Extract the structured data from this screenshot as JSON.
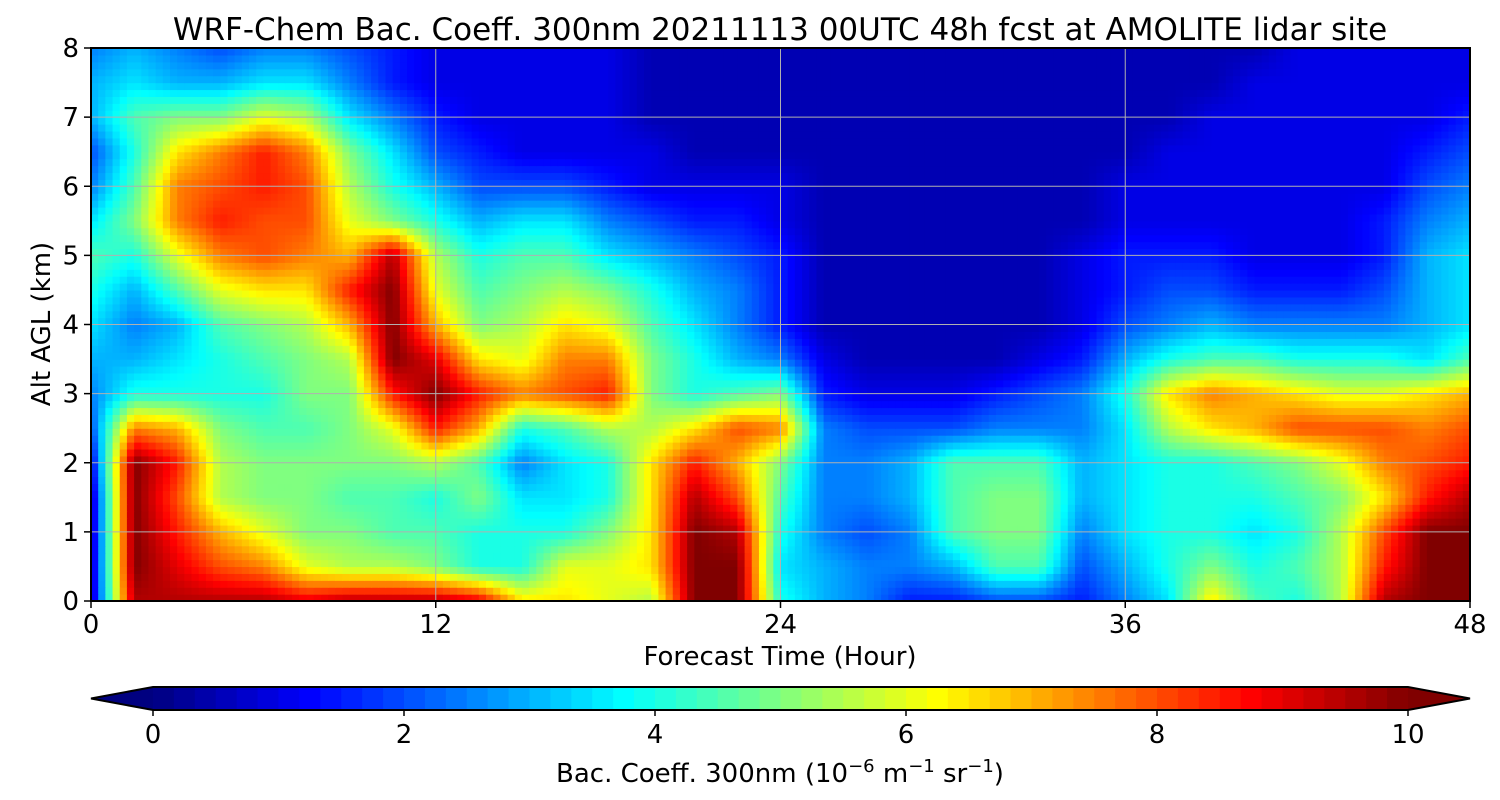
{
  "chart_data": {
    "type": "heatmap",
    "subtype": "filled-contour",
    "title": "WRF-Chem Bac. Coeff. 300nm  20211113 00UTC 48h fcst at AMOLITE lidar site",
    "xlabel": "Forecast Time (Hour)",
    "ylabel": "Alt AGL (km)",
    "xlim": [
      0,
      48
    ],
    "ylim": [
      0,
      8
    ],
    "x_ticks": [
      "0",
      "12",
      "24",
      "36",
      "48"
    ],
    "y_ticks": [
      "0",
      "1",
      "2",
      "3",
      "4",
      "5",
      "6",
      "7",
      "8"
    ],
    "grid": true,
    "colormap": "jet",
    "colorbar": {
      "label_prefix": "Bac. Coeff. 300nm  (10",
      "label_exp1": "−6",
      "label_mid": " m",
      "label_exp2": "−1",
      "label_mid2": " sr",
      "label_exp3": "−1",
      "label_suffix": ")",
      "range": [
        0,
        10
      ],
      "ticks": [
        "0",
        "2",
        "4",
        "6",
        "8",
        "10"
      ],
      "extend": "both",
      "placement": "bottom"
    },
    "x": [
      0,
      1.5,
      3,
      4.5,
      6,
      7.5,
      9,
      10.5,
      12,
      13.5,
      15,
      16.5,
      18,
      19.5,
      21,
      22.5,
      24,
      25.5,
      27,
      28.5,
      30,
      31.5,
      33,
      34.5,
      36,
      37.5,
      39,
      40.5,
      42,
      43.5,
      45,
      46.5,
      48
    ],
    "y": [
      0,
      0.5,
      1,
      1.5,
      2,
      2.5,
      3,
      3.5,
      4,
      4.5,
      5,
      5.5,
      6,
      6.5,
      7,
      7.5,
      8
    ],
    "z": [
      [
        0.5,
        9.5,
        9.5,
        9.5,
        9.5,
        9.0,
        9.5,
        9.5,
        9.5,
        9.0,
        6.5,
        6.5,
        6.0,
        5.5,
        10.0,
        10.0,
        4.0,
        3.0,
        2.5,
        1.5,
        1.5,
        2.0,
        2.0,
        1.5,
        2.5,
        3.5,
        6.5,
        4.5,
        4.0,
        5.5,
        9.5,
        10.0,
        10.0
      ],
      [
        0.5,
        10.0,
        9.0,
        8.0,
        7.5,
        6.0,
        5.5,
        5.5,
        5.0,
        4.0,
        4.0,
        6.0,
        6.0,
        6.5,
        10.0,
        10.0,
        3.5,
        3.0,
        2.5,
        2.5,
        3.0,
        4.5,
        4.5,
        2.0,
        3.0,
        4.0,
        5.0,
        4.0,
        4.5,
        5.5,
        8.5,
        10.0,
        10.0
      ],
      [
        0.5,
        10.0,
        8.5,
        7.0,
        6.0,
        5.0,
        5.0,
        4.5,
        4.5,
        4.0,
        4.0,
        4.0,
        5.0,
        6.5,
        10.0,
        9.5,
        4.0,
        2.5,
        2.0,
        2.5,
        4.5,
        5.0,
        5.0,
        2.5,
        3.5,
        4.0,
        4.0,
        3.5,
        4.0,
        5.5,
        8.0,
        10.0,
        10.0
      ],
      [
        0.5,
        10.0,
        8.0,
        5.5,
        5.0,
        5.0,
        4.5,
        4.5,
        4.0,
        5.0,
        3.5,
        3.5,
        4.0,
        6.5,
        9.5,
        8.0,
        4.5,
        2.5,
        2.5,
        3.0,
        4.5,
        5.0,
        5.0,
        3.0,
        3.5,
        4.0,
        4.0,
        4.0,
        4.5,
        5.0,
        6.5,
        8.5,
        9.5
      ],
      [
        1.0,
        10.0,
        8.5,
        5.5,
        5.0,
        5.0,
        5.0,
        5.0,
        5.5,
        4.5,
        2.5,
        3.5,
        4.0,
        6.5,
        8.5,
        7.0,
        5.0,
        2.5,
        2.5,
        3.0,
        4.5,
        4.5,
        4.5,
        3.0,
        3.5,
        4.0,
        4.0,
        4.5,
        5.0,
        6.0,
        7.5,
        8.0,
        8.5
      ],
      [
        2.0,
        7.5,
        7.0,
        5.0,
        4.5,
        4.5,
        5.0,
        6.0,
        8.5,
        7.0,
        4.0,
        4.5,
        5.5,
        5.5,
        6.5,
        8.0,
        7.5,
        2.5,
        2.0,
        2.0,
        2.0,
        2.5,
        2.5,
        2.5,
        3.5,
        5.5,
        6.5,
        7.0,
        8.0,
        8.0,
        8.0,
        7.5,
        8.0
      ],
      [
        2.5,
        4.0,
        4.0,
        4.0,
        4.0,
        5.0,
        5.0,
        8.5,
        10.0,
        8.5,
        7.5,
        8.0,
        8.5,
        5.0,
        4.0,
        4.5,
        5.0,
        1.5,
        1.0,
        1.0,
        1.0,
        1.5,
        2.0,
        2.5,
        4.0,
        6.5,
        7.5,
        7.0,
        6.5,
        6.0,
        6.0,
        6.5,
        7.0
      ],
      [
        3.0,
        3.0,
        3.5,
        4.0,
        4.5,
        5.0,
        5.5,
        10.0,
        9.0,
        6.5,
        6.0,
        7.5,
        7.5,
        5.0,
        4.0,
        3.0,
        2.5,
        1.0,
        0.5,
        0.5,
        0.5,
        0.5,
        1.0,
        1.5,
        3.0,
        4.0,
        4.5,
        4.5,
        4.0,
        4.0,
        4.0,
        3.5,
        4.5
      ],
      [
        3.5,
        2.5,
        3.0,
        4.5,
        5.0,
        5.5,
        7.0,
        10.0,
        7.0,
        5.0,
        5.5,
        6.5,
        6.0,
        4.5,
        3.5,
        2.5,
        1.5,
        0.5,
        0.5,
        0.5,
        0.5,
        0.5,
        0.5,
        1.0,
        2.0,
        2.5,
        3.0,
        2.5,
        2.5,
        2.5,
        2.5,
        3.0,
        3.5
      ],
      [
        4.0,
        3.0,
        4.5,
        6.0,
        6.5,
        6.5,
        8.5,
        10.0,
        6.0,
        4.5,
        5.0,
        5.5,
        5.0,
        4.0,
        3.0,
        2.5,
        1.5,
        0.5,
        0.5,
        0.5,
        0.5,
        0.5,
        0.5,
        1.0,
        1.5,
        2.0,
        2.0,
        1.5,
        1.5,
        1.5,
        2.0,
        3.0,
        3.5
      ],
      [
        4.5,
        4.0,
        6.0,
        7.5,
        8.0,
        7.5,
        7.0,
        9.5,
        5.5,
        4.0,
        4.5,
        4.5,
        3.5,
        3.0,
        2.5,
        2.0,
        1.5,
        0.5,
        0.5,
        0.5,
        0.5,
        0.5,
        0.5,
        1.0,
        1.5,
        1.5,
        1.5,
        1.0,
        1.0,
        1.0,
        1.5,
        3.0,
        3.5
      ],
      [
        3.5,
        5.0,
        7.5,
        8.5,
        8.0,
        8.0,
        6.0,
        5.0,
        4.0,
        3.0,
        3.5,
        3.5,
        2.5,
        2.0,
        1.5,
        1.5,
        1.0,
        0.5,
        0.5,
        0.5,
        0.5,
        0.5,
        0.5,
        0.5,
        1.0,
        1.0,
        1.0,
        1.0,
        1.0,
        1.0,
        1.5,
        2.5,
        3.0
      ],
      [
        2.5,
        4.5,
        7.5,
        8.0,
        8.5,
        8.0,
        5.5,
        4.0,
        3.0,
        2.0,
        2.0,
        2.0,
        1.5,
        1.0,
        1.0,
        1.0,
        1.0,
        0.5,
        0.5,
        0.5,
        0.5,
        0.5,
        0.5,
        0.5,
        1.0,
        1.0,
        1.0,
        1.0,
        1.0,
        1.0,
        1.0,
        2.0,
        2.5
      ],
      [
        2.0,
        4.0,
        6.5,
        7.5,
        8.5,
        7.5,
        5.0,
        3.5,
        2.0,
        1.5,
        1.0,
        1.0,
        1.0,
        1.0,
        0.5,
        0.5,
        0.5,
        0.5,
        0.5,
        0.5,
        0.5,
        0.5,
        0.5,
        0.5,
        0.5,
        1.0,
        1.0,
        1.0,
        1.0,
        1.0,
        1.0,
        1.5,
        2.0
      ],
      [
        3.0,
        4.5,
        5.0,
        5.0,
        6.0,
        5.5,
        3.5,
        2.5,
        1.5,
        1.0,
        1.0,
        1.0,
        1.0,
        0.5,
        0.5,
        0.5,
        0.5,
        0.5,
        0.5,
        0.5,
        0.5,
        0.5,
        0.5,
        0.5,
        0.5,
        0.5,
        1.0,
        1.0,
        1.0,
        1.0,
        1.0,
        1.0,
        1.5
      ],
      [
        3.0,
        3.5,
        3.0,
        3.0,
        3.5,
        3.5,
        2.5,
        1.5,
        1.0,
        1.0,
        1.0,
        1.0,
        1.0,
        0.5,
        0.5,
        0.5,
        0.5,
        0.5,
        0.5,
        0.5,
        0.5,
        0.5,
        0.5,
        0.5,
        0.5,
        0.5,
        0.5,
        1.0,
        1.0,
        1.0,
        1.0,
        1.0,
        1.0
      ],
      [
        2.5,
        3.0,
        2.5,
        2.0,
        2.5,
        2.5,
        2.0,
        1.5,
        1.0,
        1.0,
        1.0,
        1.0,
        1.0,
        0.5,
        0.5,
        0.5,
        0.5,
        0.5,
        0.5,
        0.5,
        0.5,
        0.5,
        0.5,
        0.5,
        0.5,
        0.5,
        0.5,
        0.5,
        1.0,
        1.0,
        1.0,
        1.0,
        1.0
      ]
    ]
  }
}
